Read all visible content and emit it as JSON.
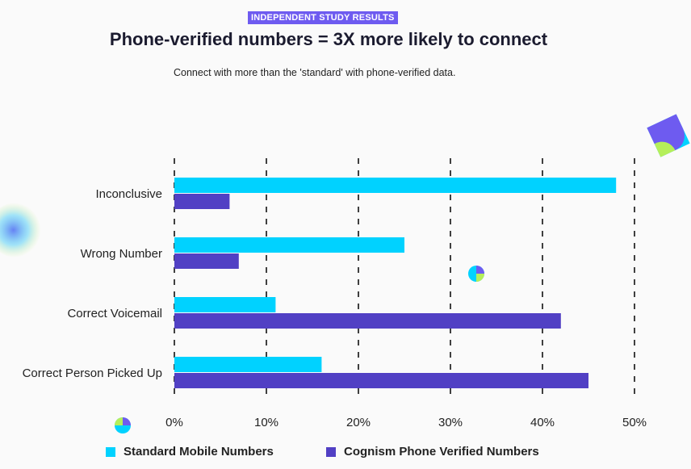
{
  "header": {
    "badge": "INDEPENDENT STUDY RESULTS",
    "title": "Phone-verified numbers = 3X more likely to connect",
    "subtitle": "Connect with more than the 'standard' with phone-verified data."
  },
  "colors": {
    "standard": "#00d2ff",
    "verified": "#5140c4",
    "badge": "#6e5bf0"
  },
  "chart_data": {
    "type": "bar",
    "orientation": "horizontal",
    "categories": [
      "Inconclusive",
      "Wrong Number",
      "Correct Voicemail",
      "Correct Person Picked Up"
    ],
    "series": [
      {
        "name": "Standard Mobile Numbers",
        "values": [
          48,
          25,
          11,
          16
        ]
      },
      {
        "name": "Cognism Phone Verified Numbers",
        "values": [
          6,
          7,
          42,
          45
        ]
      }
    ],
    "xticks": [
      "0%",
      "10%",
      "20%",
      "30%",
      "40%",
      "50%"
    ],
    "xlim": [
      0,
      50
    ],
    "grid": true,
    "legend_position": "bottom",
    "title": "Phone-verified numbers = 3X more likely to connect"
  }
}
